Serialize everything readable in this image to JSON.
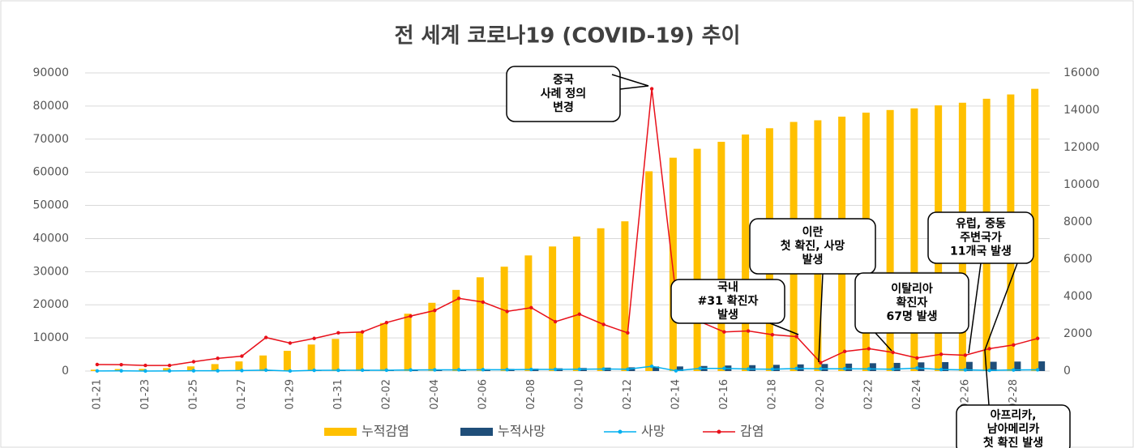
{
  "chart_data": {
    "type": "combo",
    "title": "전 세계 코로나19 (COVID-19) 추이",
    "categories": [
      "01-21",
      null,
      "01-23",
      null,
      "01-25",
      null,
      "01-27",
      null,
      "01-29",
      null,
      "01-31",
      null,
      "02-02",
      null,
      "02-04",
      null,
      "02-06",
      null,
      "02-08",
      null,
      "02-10",
      null,
      "02-12",
      null,
      "02-14",
      null,
      "02-16",
      null,
      "02-18",
      null,
      "02-20",
      null,
      "02-22",
      null,
      "02-24",
      null,
      "02-26",
      null,
      "02-28",
      null
    ],
    "series": [
      {
        "name": "누적감염",
        "type": "bar",
        "color": "#ffc000",
        "values": [
          400,
          600,
          650,
          900,
          1400,
          2100,
          2900,
          4700,
          6100,
          8000,
          9700,
          11800,
          14500,
          17300,
          20600,
          24500,
          28300,
          31500,
          34900,
          37600,
          40600,
          43100,
          45200,
          60300,
          64400,
          67100,
          69200,
          71400,
          73300,
          75200,
          75700,
          76800,
          78000,
          78800,
          79300,
          80200,
          81000,
          82200,
          83500,
          85200
        ]
      },
      {
        "name": "누적사망",
        "type": "bar",
        "color": "#1f4e79",
        "values": [
          6,
          17,
          18,
          26,
          42,
          56,
          82,
          131,
          133,
          171,
          213,
          259,
          304,
          362,
          426,
          492,
          565,
          638,
          724,
          813,
          910,
          1018,
          1115,
          1369,
          1383,
          1526,
          1669,
          1775,
          1873,
          2009,
          2126,
          2247,
          2360,
          2460,
          2618,
          2699,
          2763,
          2800,
          2858,
          2924
        ]
      },
      {
        "name": "사망",
        "type": "line",
        "axis": "y2",
        "color": "#00b0f0",
        "values": [
          6,
          11,
          1,
          8,
          16,
          14,
          26,
          49,
          2,
          38,
          42,
          46,
          45,
          58,
          64,
          66,
          73,
          73,
          86,
          89,
          97,
          108,
          97,
          254,
          14,
          143,
          143,
          106,
          98,
          136,
          117,
          121,
          113,
          100,
          158,
          81,
          64,
          37,
          58,
          66
        ]
      },
      {
        "name": "감염",
        "type": "line",
        "axis": "y2",
        "color": "#e8101a",
        "values": [
          350,
          340,
          300,
          300,
          500,
          680,
          800,
          1800,
          1500,
          1750,
          2050,
          2100,
          2600,
          2950,
          3250,
          3900,
          3700,
          3200,
          3400,
          2650,
          3050,
          2500,
          2050,
          15150,
          4100,
          2650,
          2100,
          2150,
          1950,
          1850,
          450,
          1050,
          1200,
          1000,
          700,
          900,
          850,
          1200,
          1400,
          1750
        ]
      }
    ],
    "ylim": [
      0,
      90000
    ],
    "yticks": [
      0,
      10000,
      20000,
      30000,
      40000,
      50000,
      60000,
      70000,
      80000,
      90000
    ],
    "y2lim": [
      0,
      16000
    ],
    "y2ticks": [
      0,
      2000,
      4000,
      6000,
      8000,
      10000,
      12000,
      14000,
      16000
    ],
    "grid": true,
    "legend": "bottom",
    "annotations": [
      {
        "lines": [
          "중국",
          "사례 정의",
          "변경"
        ]
      },
      {
        "lines": [
          "국내",
          "#31 확진자",
          "발생"
        ]
      },
      {
        "lines": [
          "이란",
          "첫 확진, 사망",
          "발생"
        ]
      },
      {
        "lines": [
          "이탈리아",
          "확진자",
          "67명 발생"
        ]
      },
      {
        "lines": [
          "유럽, 중동",
          "주변국가",
          "11개국 발생"
        ]
      },
      {
        "lines": [
          "아프리카,",
          "남아메리카",
          "첫 확진 발생"
        ]
      }
    ]
  }
}
